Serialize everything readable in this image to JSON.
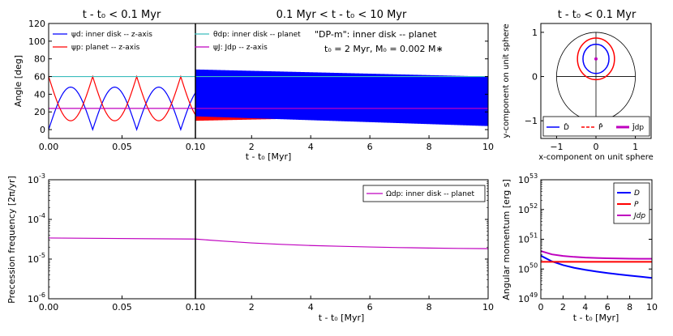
{
  "colors": {
    "blue": "#0000ff",
    "red": "#ff0000",
    "cyan": "#3cbdbd",
    "magenta": "#bf00bf",
    "black": "#000000"
  },
  "chart_data": [
    {
      "id": "angles",
      "type": "line",
      "titles": [
        "t - t₀ < 0.1 Myr",
        "0.1 Myr < t - t₀ < 10 Myr"
      ],
      "xlabel": "t - t₀ [Myr]",
      "ylabel": "Angle [deg]",
      "ylim": [
        -10,
        120
      ],
      "yticks": [
        0,
        20,
        40,
        60,
        80,
        100,
        120
      ],
      "left_xlim": [
        0,
        0.1
      ],
      "left_xticks": [
        "0.00",
        "0.05",
        "0.10"
      ],
      "right_xlim": [
        0.1,
        10
      ],
      "right_xticks": [
        "2",
        "4",
        "6",
        "8",
        "10"
      ],
      "annotation": [
        "\"DP-m\":   inner disk -- planet",
        "t₀ = 2 Myr,   M₀ = 0.002 M∗"
      ],
      "legend": [
        "ψd: inner disk -- z-axis",
        "ψp: planet -- z-axis",
        "θdp: inner disk -- planet",
        "ψJ: Jdp -- z-axis"
      ],
      "series": [
        {
          "name": "ψd: inner disk -- z-axis",
          "color": "blue",
          "early_range": [
            0,
            48
          ],
          "early_period": 0.03,
          "late_start": [
            15,
            68
          ],
          "late_end": [
            4,
            60
          ]
        },
        {
          "name": "ψp: planet -- z-axis",
          "color": "red",
          "early_range": [
            10,
            60
          ],
          "early_period": 0.03,
          "late_start": [
            10,
            60
          ],
          "late_end": [
            17,
            37
          ]
        },
        {
          "name": "θdp: inner disk -- planet",
          "color": "cyan",
          "value": 60
        },
        {
          "name": "ψJ: Jdp -- z-axis",
          "color": "magenta",
          "value": 24
        }
      ]
    },
    {
      "id": "unit-sphere",
      "type": "line",
      "title": "t - t₀ < 0.1 Myr",
      "xlabel": "x-component on unit sphere",
      "ylabel": "y-component on unit sphere",
      "xlim": [
        -1.4,
        1.4
      ],
      "ylim": [
        -1.4,
        1.2
      ],
      "xticks": [
        "−1",
        "0",
        "1"
      ],
      "yticks": [
        "−1",
        "0",
        "1"
      ],
      "legend": [
        "D̂",
        "P̂",
        "Ĵdp"
      ],
      "series": [
        {
          "name": "D̂",
          "color": "blue",
          "shape": "circle",
          "center": [
            0,
            0.4
          ],
          "radius": 0.33
        },
        {
          "name": "P̂",
          "color": "red",
          "shape": "circle",
          "center": [
            0,
            0.4
          ],
          "radius": 0.47
        },
        {
          "name": "Ĵdp",
          "color": "magenta",
          "shape": "point",
          "center": [
            0,
            0.4
          ]
        },
        {
          "name": "unit circle",
          "color": "black",
          "shape": "circle",
          "center": [
            0,
            0
          ],
          "radius": 1
        }
      ]
    },
    {
      "id": "precession",
      "type": "line",
      "xlabel": "t - t₀ [Myr]",
      "ylabel": "Precession frequency [2π/yr]",
      "yscale": "log",
      "ylim": [
        1e-06,
        0.001
      ],
      "yticks": [
        "10",
        "10",
        "10",
        "10"
      ],
      "yexps": [
        "-6",
        "-5",
        "-4",
        "-3"
      ],
      "left_xlim": [
        0,
        0.1
      ],
      "left_xticks": [
        "0.00",
        "0.05",
        "0.10"
      ],
      "right_xlim": [
        0.1,
        10
      ],
      "right_xticks": [
        "2",
        "4",
        "6",
        "8",
        "10"
      ],
      "legend": [
        "Ωdp: inner disk -- planet"
      ],
      "series": [
        {
          "name": "Ωdp: inner disk -- planet",
          "color": "magenta",
          "x": [
            0,
            0.1,
            1,
            2,
            3,
            4,
            5,
            6,
            7,
            8,
            9,
            10
          ],
          "y": [
            3.4e-05,
            3.2e-05,
            2.85e-05,
            2.55e-05,
            2.35e-05,
            2.2e-05,
            2.1e-05,
            2.02e-05,
            1.95e-05,
            1.9e-05,
            1.86e-05,
            1.83e-05
          ]
        }
      ]
    },
    {
      "id": "angular-momentum",
      "type": "line",
      "xlabel": "t - t₀ [Myr]",
      "ylabel": "Angular momentum [erg s]",
      "yscale": "log",
      "xlim": [
        0,
        10
      ],
      "xticks": [
        "0",
        "2",
        "4",
        "6",
        "8",
        "10"
      ],
      "ylim": [
        1e+49,
        1e+53
      ],
      "yticks": [
        "10",
        "10",
        "10",
        "10",
        "10"
      ],
      "yexps": [
        "49",
        "50",
        "51",
        "52",
        "53"
      ],
      "legend": [
        "D",
        "P",
        "Jdp"
      ],
      "series": [
        {
          "name": "D",
          "color": "blue",
          "x": [
            0,
            1,
            2,
            3,
            4,
            5,
            6,
            7,
            8,
            9,
            10
          ],
          "y": [
            2.8e+50,
            1.8e+50,
            1.35e+50,
            1.1e+50,
            9.4e+49,
            8.2e+49,
            7.3e+49,
            6.6e+49,
            6e+49,
            5.5e+49,
            5e+49
          ]
        },
        {
          "name": "P",
          "color": "red",
          "x": [
            0,
            1,
            2,
            3,
            4,
            5,
            6,
            7,
            8,
            9,
            10
          ],
          "y": [
            1.75e+50,
            1.75e+50,
            1.75e+50,
            1.75e+50,
            1.75e+50,
            1.75e+50,
            1.75e+50,
            1.75e+50,
            1.75e+50,
            1.75e+50,
            1.75e+50
          ]
        },
        {
          "name": "Jdp",
          "color": "magenta",
          "x": [
            0,
            1,
            2,
            3,
            4,
            5,
            6,
            7,
            8,
            9,
            10
          ],
          "y": [
            4e+50,
            3.1e+50,
            2.75e+50,
            2.55e+50,
            2.42e+50,
            2.35e+50,
            2.3e+50,
            2.26e+50,
            2.23e+50,
            2.21e+50,
            2.2e+50
          ]
        }
      ]
    }
  ]
}
